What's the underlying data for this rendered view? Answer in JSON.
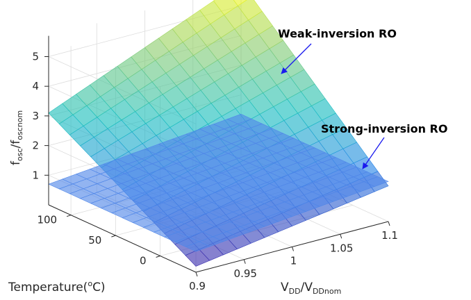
{
  "chart_data": {
    "type": "surface3d",
    "title": "",
    "xlabel": {
      "main": "V",
      "sub1": "DD",
      "mid": "/V",
      "sub2": "DDnom"
    },
    "ylabel": {
      "main": "Temperature(",
      "sup": "o",
      "tail": "C)"
    },
    "zlabel": {
      "main": "f",
      "sub1": "osc",
      "mid": "/f",
      "sub2": "oscnom"
    },
    "x_ticks": [
      "0.9",
      "0.95",
      "1",
      "1.05",
      "1.1"
    ],
    "y_ticks": [
      "0",
      "50",
      "100"
    ],
    "z_ticks": [
      "1",
      "2",
      "3",
      "4",
      "5"
    ],
    "xlim": [
      0.9,
      1.1
    ],
    "ylim": [
      -40,
      125
    ],
    "zlim": [
      0,
      5
    ],
    "grid": true,
    "series": [
      {
        "name": "Weak-inversion RO",
        "corners": {
          "vmin_tmin": 0.2,
          "vmax_tmin": 1.2,
          "vmin_tmax": 3.1,
          "vmax_tmax": 5.8
        },
        "colormap": "parula"
      },
      {
        "name": "Strong-inversion RO",
        "corners": {
          "vmin_tmin": 0.7,
          "vmax_tmin": 1.35,
          "vmin_tmax": 0.7,
          "vmax_tmax": 1.35
        },
        "color": "#4f86e8"
      }
    ],
    "annotations": [
      {
        "text": "Weak-inversion RO",
        "arrow_color": "#1a1aee"
      },
      {
        "text": "Strong-inversion RO",
        "arrow_color": "#1a1aee"
      }
    ]
  }
}
